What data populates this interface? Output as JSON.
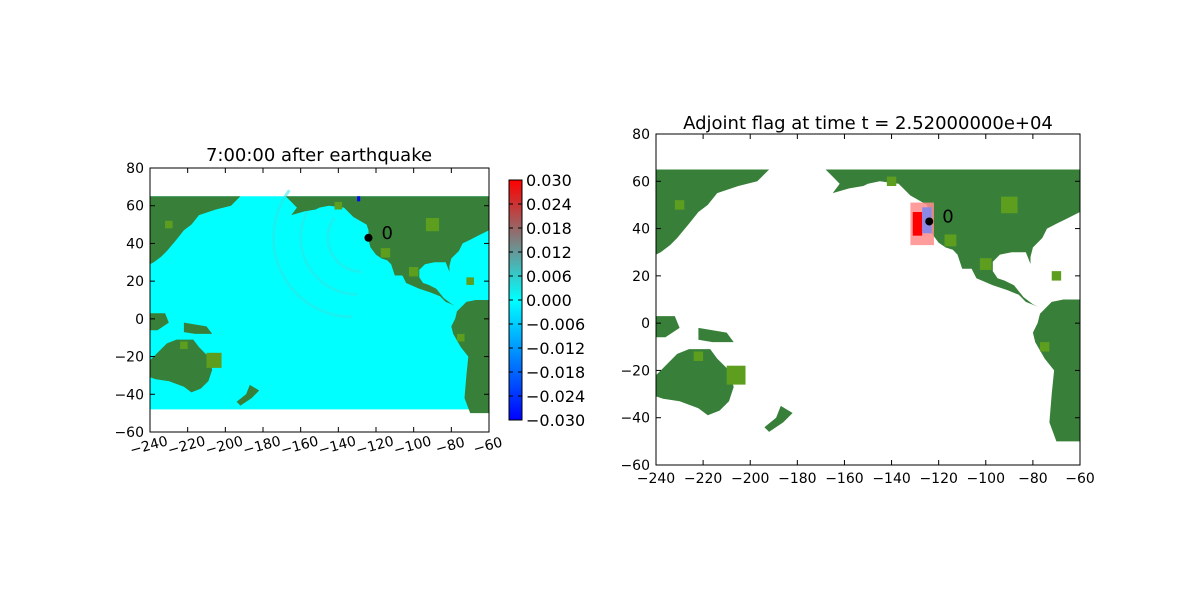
{
  "colors": {
    "ocean": "#00ffff",
    "land": "#38803a",
    "land_light": "#5d9e1e",
    "wave_light": "#2ee6e6",
    "flag_red": "#ff0000",
    "flag_pink": "#ff8c8c",
    "flag_blue": "#8a8ae6",
    "gauge": "#000000",
    "colormap": [
      "#0000ff",
      "#00ffff",
      "#7f7f7f",
      "#ff0000"
    ]
  },
  "chart_data": [
    {
      "type": "heatmap",
      "title": "7:00:00 after earthquake",
      "xlabel": "",
      "ylabel": "",
      "xlim": [
        -240,
        -60
      ],
      "ylim": [
        -60,
        80
      ],
      "xticks": [
        "−240",
        "−220",
        "−200",
        "−180",
        "−160",
        "−140",
        "−120",
        "−100",
        "−80",
        "−60"
      ],
      "yticks": [
        "80",
        "60",
        "40",
        "20",
        "0",
        "−20",
        "−40",
        "−60"
      ],
      "x_tick_rotation_deg": 15,
      "domain_extent": {
        "x": [
          -240,
          -60
        ],
        "y": [
          -48,
          65
        ]
      },
      "gauge": {
        "label": "0",
        "x": -124,
        "y": 43
      },
      "colorbar": {
        "range": [
          -0.03,
          0.03
        ],
        "tick_labels": [
          "0.030",
          "0.024",
          "0.018",
          "0.012",
          "0.006",
          "0.000",
          "−0.006",
          "−0.012",
          "−0.018",
          "−0.024",
          "−0.030"
        ]
      },
      "grid": false
    },
    {
      "type": "heatmap",
      "title": "Adjoint flag at time t = 2.52000000e+04",
      "xlabel": "",
      "ylabel": "",
      "xlim": [
        -240,
        -60
      ],
      "ylim": [
        -60,
        80
      ],
      "xticks": [
        "−240",
        "−220",
        "−200",
        "−180",
        "−160",
        "−140",
        "−120",
        "−100",
        "−80",
        "−60"
      ],
      "yticks": [
        "80",
        "60",
        "40",
        "20",
        "0",
        "−20",
        "−40",
        "−60"
      ],
      "domain_extent": {
        "x": [
          -240,
          -66
        ],
        "y": [
          -48,
          65
        ]
      },
      "gauge": {
        "label": "0",
        "x": -124,
        "y": 43
      },
      "flag_region": {
        "x": [
          -132,
          -122
        ],
        "y": [
          33,
          51
        ]
      },
      "grid": false
    }
  ]
}
